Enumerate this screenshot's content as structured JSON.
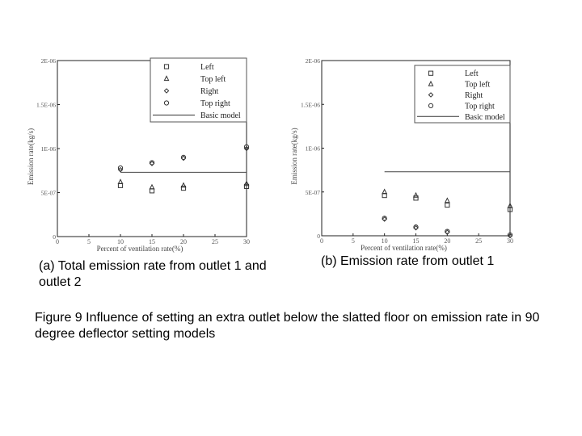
{
  "chart_data": [
    {
      "type": "scatter",
      "title": "",
      "xlabel": "Percent of ventilation rate(%)",
      "ylabel": "Emission rate(kg/s)",
      "xlim": [
        0,
        30
      ],
      "ylim": [
        0,
        2e-06
      ],
      "x_ticks": [
        "0",
        "5",
        "10",
        "15",
        "20",
        "25",
        "30"
      ],
      "y_ticks": [
        "0",
        "5E-07",
        "1E-06",
        "1.5E-06",
        "2E-06"
      ],
      "grid": false,
      "legend": "top-right",
      "series": [
        {
          "name": "Left",
          "marker": "square",
          "x": [
            10,
            15,
            20,
            30
          ],
          "y": [
            5.8e-07,
            5.2e-07,
            5.5e-07,
            5.7e-07
          ]
        },
        {
          "name": "Top left",
          "marker": "triangle",
          "x": [
            10,
            15,
            20,
            30
          ],
          "y": [
            6.2e-07,
            5.6e-07,
            5.8e-07,
            6e-07
          ]
        },
        {
          "name": "Right",
          "marker": "diamond",
          "x": [
            10,
            15,
            20,
            30
          ],
          "y": [
            7.6e-07,
            8.3e-07,
            8.9e-07,
            1e-06
          ]
        },
        {
          "name": "Top right",
          "marker": "circle",
          "x": [
            10,
            15,
            20,
            30
          ],
          "y": [
            7.8e-07,
            8.4e-07,
            9e-07,
            1.02e-06
          ]
        },
        {
          "name": "Basic model",
          "type": "line",
          "x": [
            10,
            30
          ],
          "y": [
            7.3e-07,
            7.3e-07
          ]
        }
      ]
    },
    {
      "type": "scatter",
      "title": "",
      "xlabel": "Percent of ventilation rate(%)",
      "ylabel": "Emission rate(kg/s)",
      "xlim": [
        0,
        30
      ],
      "ylim": [
        0,
        2e-06
      ],
      "x_ticks": [
        "0",
        "5",
        "10",
        "15",
        "20",
        "25",
        "30"
      ],
      "y_ticks": [
        "0",
        "5E-07",
        "1E-06",
        "1.5E-06",
        "2E-06"
      ],
      "grid": false,
      "legend": "top-right",
      "series": [
        {
          "name": "Left",
          "marker": "square",
          "x": [
            10,
            15,
            20,
            30
          ],
          "y": [
            4.6e-07,
            4.3e-07,
            3.5e-07,
            3e-07
          ]
        },
        {
          "name": "Top left",
          "marker": "triangle",
          "x": [
            10,
            15,
            20,
            30
          ],
          "y": [
            5e-07,
            4.6e-07,
            4e-07,
            3.4e-07
          ]
        },
        {
          "name": "Right",
          "marker": "diamond",
          "x": [
            10,
            15,
            20,
            30
          ],
          "y": [
            1.9e-07,
            9e-08,
            4e-08,
            0
          ]
        },
        {
          "name": "Top right",
          "marker": "circle",
          "x": [
            10,
            15,
            20,
            30
          ],
          "y": [
            2e-07,
            1e-07,
            5e-08,
            1e-08
          ]
        },
        {
          "name": "Basic model",
          "type": "line",
          "x": [
            10,
            30
          ],
          "y": [
            7.3e-07,
            7.3e-07
          ]
        }
      ]
    }
  ],
  "captions": {
    "a": "(a) Total emission rate from outlet 1 and outlet 2",
    "b": "(b) Emission rate from outlet 1",
    "figure": "Figure 9 Influence of setting an extra outlet below the slatted floor on emission rate in 90 degree deflector setting models"
  }
}
